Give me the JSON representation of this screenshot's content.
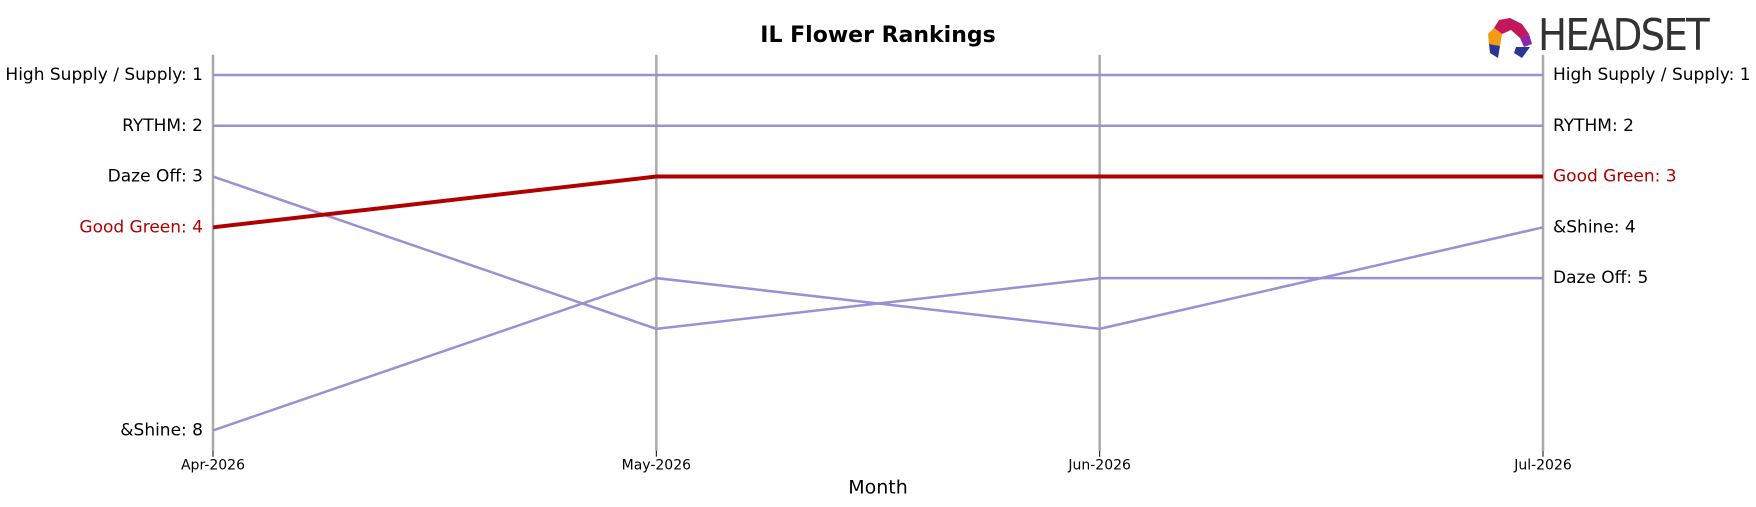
{
  "chart_data": {
    "type": "bump",
    "title": "IL Flower Rankings",
    "x_label": "Month",
    "logo": "HEADSET",
    "categories": [
      "Apr-2026",
      "May-2026",
      "Jun-2026",
      "Jul-2026"
    ],
    "ylim": [
      8.4,
      0.6
    ],
    "highlight": "Good Green",
    "series": [
      {
        "name": "High Supply / Supply",
        "color": "#9b8fd6",
        "values": [
          1,
          1,
          1,
          1
        ],
        "value_labels": [
          "High Supply / Supply: 1",
          null,
          null,
          "High Supply / Supply: 1"
        ]
      },
      {
        "name": "RYTHM",
        "color": "#9b8fd6",
        "values": [
          2,
          2,
          2,
          2
        ],
        "value_labels": [
          "RYTHM: 2",
          null,
          null,
          "RYTHM: 2"
        ]
      },
      {
        "name": "Daze Off",
        "color": "#9b8fd6",
        "values": [
          3,
          6,
          5,
          5
        ],
        "value_labels": [
          "Daze Off: 3",
          null,
          null,
          "Daze Off: 5"
        ]
      },
      {
        "name": "Good Green",
        "color": "#b00000",
        "values": [
          4,
          3,
          3,
          3
        ],
        "value_labels": [
          "Good Green: 4",
          null,
          null,
          "Good Green: 3"
        ]
      },
      {
        "name": "&Shine",
        "color": "#9b8fd6",
        "values": [
          8,
          5,
          6,
          4
        ],
        "value_labels": [
          "&Shine: 8",
          null,
          null,
          "&Shine: 4"
        ]
      }
    ]
  }
}
